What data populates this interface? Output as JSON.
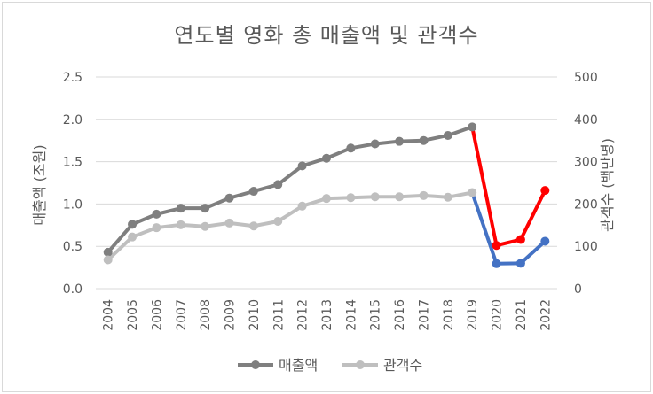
{
  "chart_data": {
    "type": "line",
    "title": "연도별 영화 총 매출액 및 관객수",
    "x": [
      "2004",
      "2005",
      "2006",
      "2007",
      "2008",
      "2009",
      "2010",
      "2011",
      "2012",
      "2013",
      "2014",
      "2015",
      "2016",
      "2017",
      "2018",
      "2019",
      "2020",
      "2021",
      "2022"
    ],
    "ylabel_left": "매출액 (조원)",
    "ylabel_right": "관객수 (백만명)",
    "ylim_left": [
      0,
      2.5
    ],
    "ylim_right": [
      0,
      500
    ],
    "yticks_left": [
      "0.0",
      "0.5",
      "1.0",
      "1.5",
      "2.0",
      "2.5"
    ],
    "yticks_right": [
      "0",
      "100",
      "200",
      "300",
      "400",
      "500"
    ],
    "grid": true,
    "legend_position": "bottom",
    "series": [
      {
        "name": "매출액",
        "axis": "left",
        "color": "#7f7f7f",
        "highlight_colors": {
          "2020": "#ff0000",
          "2021": "#ff0000",
          "2022": "#ff0000"
        },
        "values": [
          0.43,
          0.76,
          0.88,
          0.95,
          0.95,
          1.07,
          1.15,
          1.23,
          1.45,
          1.54,
          1.66,
          1.71,
          1.74,
          1.75,
          1.81,
          1.91,
          0.51,
          0.58,
          1.16
        ]
      },
      {
        "name": "관객수",
        "axis": "right",
        "color": "#bfbfbf",
        "highlight_colors": {
          "2020": "#4472c4",
          "2021": "#4472c4",
          "2022": "#4472c4"
        },
        "values": [
          68,
          122,
          144,
          151,
          147,
          155,
          148,
          159,
          195,
          213,
          215,
          217,
          217,
          220,
          216,
          227,
          59,
          60,
          112
        ]
      }
    ]
  }
}
